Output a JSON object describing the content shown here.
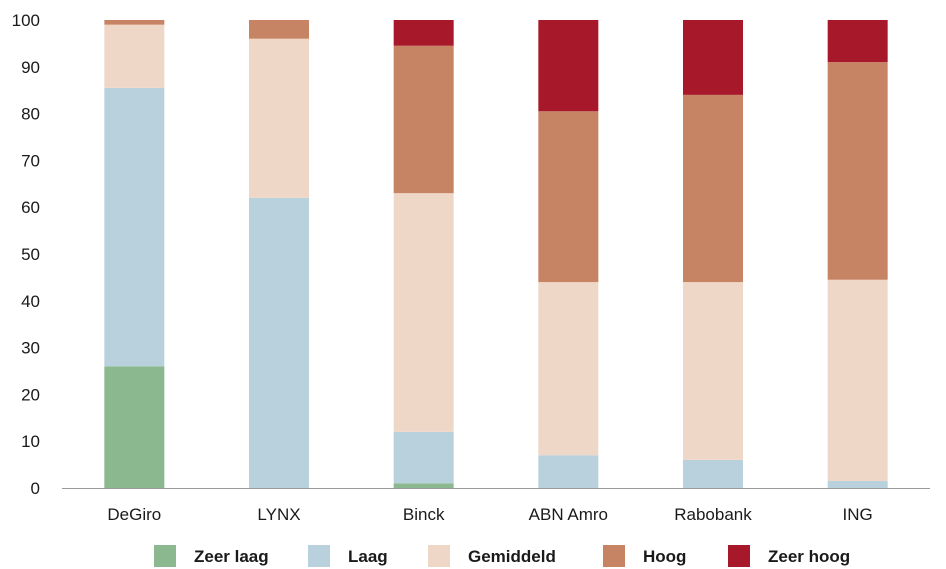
{
  "chart_data": {
    "type": "bar",
    "stacked": true,
    "categories": [
      "DeGiro",
      "LYNX",
      "Binck",
      "ABN Amro",
      "Rabobank",
      "ING"
    ],
    "series": [
      {
        "name": "Zeer laag",
        "color": "#8bb88f",
        "values": [
          26,
          0,
          1,
          0,
          0,
          0
        ]
      },
      {
        "name": "Laag",
        "color": "#b9d1dc",
        "values": [
          59.5,
          62,
          11,
          7,
          6,
          1.5
        ]
      },
      {
        "name": "Gemiddeld",
        "color": "#efd7c7",
        "values": [
          13.5,
          34,
          51,
          37,
          38,
          43
        ]
      },
      {
        "name": "Hoog",
        "color": "#c78465",
        "values": [
          1,
          4,
          31.5,
          36.5,
          40,
          46.5
        ]
      },
      {
        "name": "Zeer hoog",
        "color": "#a8182b",
        "values": [
          0,
          0,
          5.5,
          19.5,
          16,
          9
        ]
      }
    ],
    "ylim": [
      0,
      100
    ],
    "yticks": [
      0,
      10,
      20,
      30,
      40,
      50,
      60,
      70,
      80,
      90,
      100
    ],
    "grid": false,
    "legend": "bottom"
  }
}
